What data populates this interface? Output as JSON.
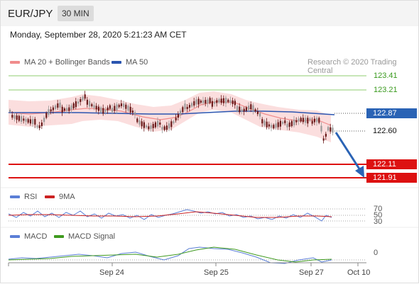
{
  "header": {
    "pair": "EUR/JPY",
    "timeframe": "30 MIN"
  },
  "timestamp": "Monday, September 28, 2020 5:21:23 AM CET",
  "legend": {
    "ma20": "MA 20 + Bollinger Bands",
    "ma50": "MA 50",
    "credit": "Research © 2020 Trading Central",
    "rsi": "RSI",
    "rsi_ma": "9MA",
    "macd": "MACD",
    "macd_signal": "MACD Signal"
  },
  "levels": {
    "r2": "123.41",
    "r1": "123.21",
    "ma50": "122.87",
    "last": "122.60",
    "s1": "122.11",
    "s2": "121.91"
  },
  "rsi_axis": {
    "top": "70",
    "mid": "50",
    "bottom": "30"
  },
  "macd_axis": {
    "zero": "0"
  },
  "x_axis": [
    "Sep 24",
    "Sep 25",
    "Sep 27",
    "Oct 10"
  ],
  "colors": {
    "resistance": "#8fce6f",
    "resistance_text": "#3a9a1e",
    "support": "#dd1111",
    "ma50": "#2b55b0",
    "ma20": "#f08c8c",
    "bollinger": "#fbdede",
    "candle_up": "#999999",
    "candle_down": "#6a1a1a",
    "arrow": "#2a63b5",
    "rsi": "#5b7fd6",
    "macd_signal": "#3f9a1f"
  }
}
